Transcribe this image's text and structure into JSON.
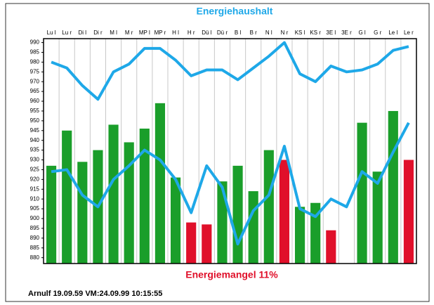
{
  "chart_data": {
    "type": "bar",
    "title": "Energiehaushalt",
    "subtitle": "Energiemangel 11%",
    "footer": "Arnulf 19.09.59 VM:24.09.99 10:15:55",
    "categories": [
      "Lu l",
      "Lu r",
      "Di l",
      "Di r",
      "M l",
      "M r",
      "MP l",
      "MP r",
      "H l",
      "H r",
      "Dü l",
      "Dü r",
      "B l",
      "B r",
      "N l",
      "N r",
      "KS l",
      "KS r",
      "3E l",
      "3E r",
      "G l",
      "G r",
      "Le l",
      "Le r"
    ],
    "values": [
      927,
      945,
      929,
      935,
      948,
      939,
      946,
      959,
      921,
      898,
      897,
      919,
      927,
      914,
      935,
      930,
      906,
      908,
      894,
      null,
      949,
      924,
      955,
      930
    ],
    "colors": [
      "#1a9e2a",
      "#1a9e2a",
      "#1a9e2a",
      "#1a9e2a",
      "#1a9e2a",
      "#1a9e2a",
      "#1a9e2a",
      "#1a9e2a",
      "#1a9e2a",
      "#e0102a",
      "#e0102a",
      "#1a9e2a",
      "#1a9e2a",
      "#1a9e2a",
      "#1a9e2a",
      "#e0102a",
      "#1a9e2a",
      "#1a9e2a",
      "#e0102a",
      "#1a9e2a",
      "#1a9e2a",
      "#1a9e2a",
      "#1a9e2a",
      "#e0102a"
    ],
    "lines": [
      {
        "color": "#1ea8e8",
        "values": [
          980,
          977,
          968,
          961,
          975,
          979,
          987,
          987,
          981,
          973,
          976,
          976,
          971,
          977,
          983,
          990,
          974,
          970,
          978,
          975,
          976,
          979,
          986,
          988
        ]
      },
      {
        "color": "#1ea8e8",
        "values": [
          924,
          925,
          912,
          906,
          920,
          927,
          935,
          930,
          920,
          903,
          927,
          916,
          887,
          904,
          912,
          937,
          905,
          901,
          910,
          906,
          924,
          918,
          934,
          949
        ]
      }
    ],
    "ylim": [
      877,
      992
    ],
    "yticks": [
      880,
      885,
      890,
      895,
      900,
      905,
      910,
      915,
      920,
      925,
      930,
      935,
      940,
      945,
      950,
      955,
      960,
      965,
      970,
      975,
      980,
      985,
      990
    ],
    "grid": true
  }
}
